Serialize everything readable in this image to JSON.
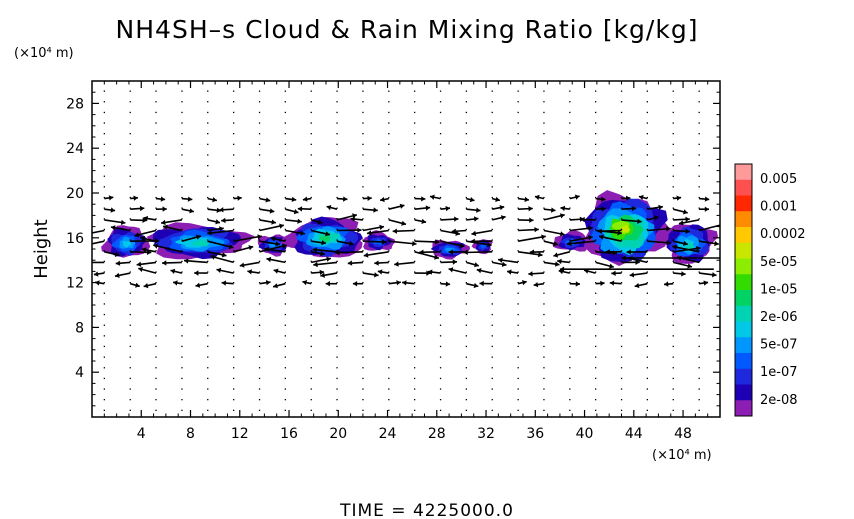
{
  "chart_data": {
    "type": "heatmap",
    "title": "NH4SH–s Cloud & Rain Mixing Ratio [kg/kg]",
    "ylabel": "Height",
    "y_unit": "(×10⁴ m)",
    "x_unit": "(×10⁴ m)",
    "footer": "TIME  =  4225000.0",
    "xlim": [
      0,
      51
    ],
    "ylim": [
      0,
      30
    ],
    "x_ticks": [
      "4",
      "8",
      "12",
      "16",
      "20",
      "24",
      "28",
      "32",
      "36",
      "40",
      "44",
      "48"
    ],
    "y_ticks": [
      "4",
      "8",
      "12",
      "16",
      "20",
      "24",
      "28"
    ],
    "x_tick_values": [
      4,
      8,
      12,
      16,
      20,
      24,
      28,
      32,
      36,
      40,
      44,
      48
    ],
    "y_tick_values": [
      4,
      8,
      12,
      16,
      20,
      24,
      28
    ],
    "legend": {
      "placement": "right",
      "labels": [
        "0.005",
        "0.001",
        "0.0002",
        "5e-05",
        "1e-05",
        "2e-06",
        "5e-07",
        "1e-07",
        "2e-08"
      ],
      "colors": [
        "#ff9a9a",
        "#ff5050",
        "#ff2800",
        "#ff8c00",
        "#ffc800",
        "#c8e600",
        "#8ced00",
        "#32dc00",
        "#00d264",
        "#00d2b4",
        "#00c8e6",
        "#0096ff",
        "#005aff",
        "#1e28dc",
        "#1e00b4",
        "#8c1eb4"
      ]
    },
    "cloud_blobs": [
      {
        "x": [
          1,
          4.5
        ],
        "y": [
          14.2,
          17.0
        ],
        "level": 5
      },
      {
        "x": [
          4.5,
          12.5
        ],
        "y": [
          14.2,
          17.2
        ],
        "level": 6
      },
      {
        "x": [
          13.5,
          16
        ],
        "y": [
          14.5,
          16.3
        ],
        "level": 4
      },
      {
        "x": [
          16,
          22
        ],
        "y": [
          14.2,
          17.8
        ],
        "level": 7
      },
      {
        "x": [
          22,
          24.5
        ],
        "y": [
          14.8,
          16.5
        ],
        "level": 3
      },
      {
        "x": [
          27.5,
          30.5
        ],
        "y": [
          14.2,
          15.8
        ],
        "level": 4
      },
      {
        "x": [
          31,
          32.5
        ],
        "y": [
          14.6,
          15.9
        ],
        "level": 3
      },
      {
        "x": [
          37.5,
          40.5
        ],
        "y": [
          14.8,
          16.5
        ],
        "level": 3
      },
      {
        "x": [
          40,
          46.5
        ],
        "y": [
          13.8,
          19.8
        ],
        "level": 10
      },
      {
        "x": [
          46.5,
          50.5
        ],
        "y": [
          13.8,
          17.3
        ],
        "level": 6
      }
    ]
  }
}
